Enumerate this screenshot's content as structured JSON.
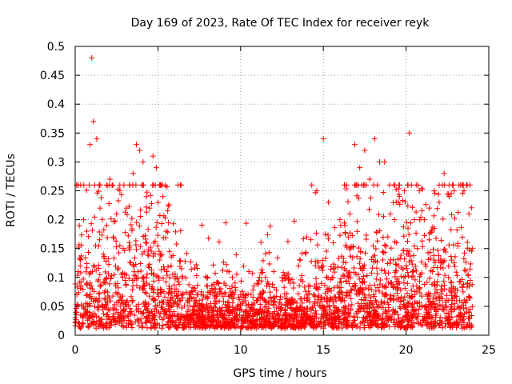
{
  "chart_data": {
    "type": "scatter",
    "title": "Day 169 of 2023, Rate Of TEC Index for receiver reyk",
    "xlabel": "GPS time / hours",
    "ylabel": "ROTI / TECUs",
    "xlim": [
      0,
      25
    ],
    "ylim": [
      0,
      0.5
    ],
    "xticks": [
      0,
      5,
      10,
      15,
      20,
      25
    ],
    "yticks": [
      0,
      0.05,
      0.1,
      0.15,
      0.2,
      0.25,
      0.3,
      0.35,
      0.4,
      0.45,
      0.5
    ],
    "grid": true,
    "marker": "plus",
    "color": "#ff0000",
    "series": [
      {
        "name": "ROTI",
        "x": [
          0.1,
          0.3,
          0.5,
          0.7,
          0.9,
          1.0,
          1.1,
          1.3,
          1.5,
          1.7,
          1.9,
          2.1,
          2.3,
          2.5,
          2.7,
          2.9,
          3.1,
          3.3,
          3.5,
          3.7,
          3.9,
          4.1,
          4.3,
          4.5,
          4.7,
          4.9,
          5.1,
          5.3,
          5.5,
          5.8,
          6.1,
          6.5,
          7.0,
          7.5,
          8.0,
          8.5,
          9.0,
          9.5,
          10.0,
          10.5,
          11.0,
          11.5,
          12.0,
          12.5,
          13.0,
          13.5,
          14.0,
          14.3,
          14.6,
          15.0,
          15.3,
          15.6,
          16.0,
          16.3,
          16.6,
          16.9,
          17.2,
          17.5,
          17.8,
          18.1,
          18.4,
          18.7,
          19.0,
          19.3,
          19.6,
          19.9,
          20.2,
          20.5,
          20.8,
          21.1,
          21.4,
          21.7,
          22.0,
          22.3,
          22.6,
          22.9,
          23.2,
          23.5,
          23.8,
          24.0
        ],
        "y": [
          0.07,
          0.12,
          0.2,
          0.18,
          0.33,
          0.48,
          0.37,
          0.34,
          0.22,
          0.14,
          0.19,
          0.27,
          0.17,
          0.21,
          0.25,
          0.15,
          0.22,
          0.26,
          0.28,
          0.33,
          0.32,
          0.3,
          0.24,
          0.22,
          0.31,
          0.29,
          0.26,
          0.24,
          0.18,
          0.12,
          0.08,
          0.07,
          0.07,
          0.06,
          0.1,
          0.08,
          0.09,
          0.1,
          0.07,
          0.11,
          0.09,
          0.1,
          0.11,
          0.1,
          0.09,
          0.12,
          0.17,
          0.26,
          0.25,
          0.34,
          0.23,
          0.16,
          0.2,
          0.19,
          0.21,
          0.33,
          0.29,
          0.32,
          0.27,
          0.34,
          0.3,
          0.3,
          0.26,
          0.2,
          0.24,
          0.25,
          0.35,
          0.2,
          0.25,
          0.2,
          0.22,
          0.25,
          0.23,
          0.28,
          0.24,
          0.25,
          0.26,
          0.25,
          0.21,
          0.15
        ]
      }
    ]
  }
}
